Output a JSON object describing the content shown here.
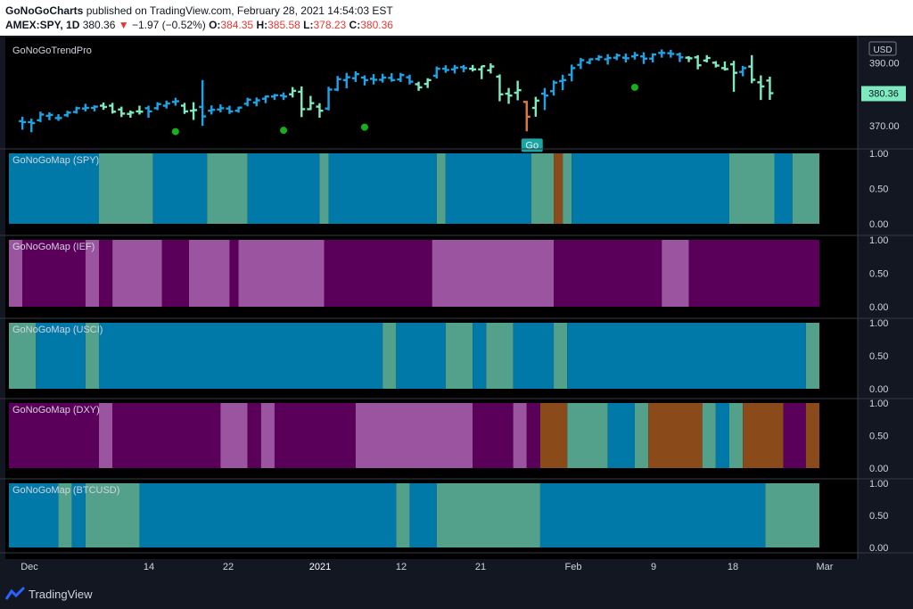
{
  "header": {
    "publisher": "GoNoGoCharts",
    "published_text": "published on TradingView.com, February 28, 2021 14:54:03 EST",
    "symbol": "AMEX:SPY, 1D",
    "last": "380.36",
    "change": "−1.97 (−0.52%)",
    "o_label": "O:",
    "o_value": "384.35",
    "h_label": "H:",
    "h_value": "385.58",
    "l_label": "L:",
    "l_value": "378.23",
    "c_label": "C:",
    "c_value": "380.36"
  },
  "footer": {
    "brand": "TradingView"
  },
  "colors": {
    "background": "#000000",
    "blue": "#0079A8",
    "aqua": "#53A18B",
    "purple": "#5A005A",
    "light_purple": "#9B55A0",
    "brown": "#8A4A1A",
    "bar_blue": "#1EA3E6",
    "bar_aqua": "#7EEAC0",
    "bar_orange": "#E07B39",
    "dot_green": "#15B01A",
    "last_price_bg": "#7EEAC0"
  },
  "chart_data": [
    {
      "type": "ohlc",
      "title": "GoNoGoTrendPro",
      "currency": "USD",
      "y_ticks": [
        "390.00",
        "370.00"
      ],
      "last_price": "380.36",
      "go_label": "Go",
      "x_ticks": [
        "Dec",
        "14",
        "22",
        "2021",
        "12",
        "21",
        "Feb",
        "9",
        "18",
        "Mar"
      ],
      "bars": [
        {
          "o": 371.5,
          "h": 372.9,
          "l": 368.8,
          "c": 371.2,
          "s": "blue"
        },
        {
          "o": 371.2,
          "h": 372.3,
          "l": 368.0,
          "c": 370.9,
          "s": "blue"
        },
        {
          "o": 371.8,
          "h": 374.5,
          "l": 371.2,
          "c": 373.6,
          "s": "blue"
        },
        {
          "o": 373.2,
          "h": 374.3,
          "l": 371.8,
          "c": 373.5,
          "s": "blue"
        },
        {
          "o": 372.5,
          "h": 373.7,
          "l": 371.6,
          "c": 372.5,
          "s": "blue"
        },
        {
          "o": 373.4,
          "h": 374.8,
          "l": 372.8,
          "c": 374.2,
          "s": "blue"
        },
        {
          "o": 374.4,
          "h": 376.1,
          "l": 373.9,
          "c": 375.6,
          "s": "blue"
        },
        {
          "o": 375.5,
          "h": 377.0,
          "l": 374.6,
          "c": 375.7,
          "s": "blue"
        },
        {
          "o": 375.7,
          "h": 376.5,
          "l": 374.6,
          "c": 376.1,
          "s": "blue"
        },
        {
          "o": 376.4,
          "h": 377.4,
          "l": 375.1,
          "c": 376.0,
          "s": "aqua"
        },
        {
          "o": 376.4,
          "h": 377.3,
          "l": 373.9,
          "c": 374.5,
          "s": "aqua"
        },
        {
          "o": 375.2,
          "h": 376.1,
          "l": 372.8,
          "c": 373.9,
          "s": "aqua"
        },
        {
          "o": 373.8,
          "h": 374.9,
          "l": 372.6,
          "c": 374.2,
          "s": "aqua"
        },
        {
          "o": 374.6,
          "h": 376.4,
          "l": 373.6,
          "c": 374.5,
          "s": "aqua"
        },
        {
          "o": 375.6,
          "h": 376.4,
          "l": 372.6,
          "c": 374.6,
          "s": "blue"
        },
        {
          "o": 375.6,
          "h": 377.5,
          "l": 375.0,
          "c": 376.9,
          "s": "blue"
        },
        {
          "o": 376.4,
          "h": 378.0,
          "l": 375.5,
          "c": 377.1,
          "s": "blue"
        },
        {
          "o": 377.6,
          "h": 378.9,
          "l": 376.4,
          "c": 377.8,
          "s": "blue"
        },
        {
          "o": 376.4,
          "h": 377.3,
          "l": 373.8,
          "c": 374.6,
          "s": "aqua"
        },
        {
          "o": 374.8,
          "h": 377.5,
          "l": 371.9,
          "c": 375.0,
          "s": "aqua"
        },
        {
          "o": 376.0,
          "h": 384.5,
          "l": 370.0,
          "c": 373.0,
          "s": "blue"
        },
        {
          "o": 374.8,
          "h": 376.5,
          "l": 373.6,
          "c": 375.1,
          "s": "blue"
        },
        {
          "o": 375.2,
          "h": 376.8,
          "l": 374.3,
          "c": 375.6,
          "s": "blue"
        },
        {
          "o": 375.5,
          "h": 376.4,
          "l": 373.8,
          "c": 374.6,
          "s": "blue"
        },
        {
          "o": 374.8,
          "h": 376.1,
          "l": 374.2,
          "c": 375.8,
          "s": "blue"
        },
        {
          "o": 377.0,
          "h": 378.9,
          "l": 376.2,
          "c": 378.3,
          "s": "blue"
        },
        {
          "o": 377.4,
          "h": 379.0,
          "l": 376.2,
          "c": 378.1,
          "s": "blue"
        },
        {
          "o": 378.6,
          "h": 379.6,
          "l": 377.2,
          "c": 379.3,
          "s": "blue"
        },
        {
          "o": 379.3,
          "h": 380.1,
          "l": 378.2,
          "c": 379.7,
          "s": "blue"
        },
        {
          "o": 379.6,
          "h": 380.6,
          "l": 378.2,
          "c": 379.3,
          "s": "blue"
        },
        {
          "o": 380.0,
          "h": 382.3,
          "l": 379.0,
          "c": 381.1,
          "s": "aqua"
        },
        {
          "o": 380.8,
          "h": 382.5,
          "l": 372.8,
          "c": 375.3,
          "s": "aqua"
        },
        {
          "o": 375.3,
          "h": 379.5,
          "l": 375.0,
          "c": 377.2,
          "s": "aqua"
        },
        {
          "o": 376.1,
          "h": 377.2,
          "l": 372.6,
          "c": 374.8,
          "s": "aqua"
        },
        {
          "o": 375.5,
          "h": 382.4,
          "l": 374.9,
          "c": 381.5,
          "s": "blue"
        },
        {
          "o": 381.5,
          "h": 385.8,
          "l": 381.0,
          "c": 384.8,
          "s": "blue"
        },
        {
          "o": 384.5,
          "h": 386.8,
          "l": 381.9,
          "c": 385.4,
          "s": "blue"
        },
        {
          "o": 385.1,
          "h": 387.3,
          "l": 383.9,
          "c": 386.4,
          "s": "blue"
        },
        {
          "o": 385.3,
          "h": 386.0,
          "l": 382.8,
          "c": 384.5,
          "s": "blue"
        },
        {
          "o": 384.9,
          "h": 386.4,
          "l": 383.1,
          "c": 384.6,
          "s": "blue"
        },
        {
          "o": 384.6,
          "h": 386.5,
          "l": 383.7,
          "c": 385.3,
          "s": "blue"
        },
        {
          "o": 385.2,
          "h": 386.7,
          "l": 384.0,
          "c": 384.5,
          "s": "blue"
        },
        {
          "o": 384.7,
          "h": 386.8,
          "l": 383.9,
          "c": 386.1,
          "s": "blue"
        },
        {
          "o": 385.4,
          "h": 386.2,
          "l": 383.1,
          "c": 384.0,
          "s": "blue"
        },
        {
          "o": 383.2,
          "h": 384.0,
          "l": 381.1,
          "c": 382.2,
          "s": "aqua"
        },
        {
          "o": 383.3,
          "h": 385.1,
          "l": 382.0,
          "c": 384.5,
          "s": "aqua"
        },
        {
          "o": 385.9,
          "h": 388.8,
          "l": 385.0,
          "c": 388.1,
          "s": "blue"
        },
        {
          "o": 388.1,
          "h": 389.2,
          "l": 386.8,
          "c": 387.7,
          "s": "blue"
        },
        {
          "o": 387.9,
          "h": 389.3,
          "l": 386.6,
          "c": 388.4,
          "s": "blue"
        },
        {
          "o": 388.6,
          "h": 389.3,
          "l": 387.0,
          "c": 388.3,
          "s": "blue"
        },
        {
          "o": 388.1,
          "h": 389.3,
          "l": 387.2,
          "c": 387.9,
          "s": "aqua"
        },
        {
          "o": 387.9,
          "h": 389.0,
          "l": 384.8,
          "c": 388.9,
          "s": "aqua"
        },
        {
          "o": 387.6,
          "h": 389.8,
          "l": 386.6,
          "c": 388.8,
          "s": "aqua"
        },
        {
          "o": 385.6,
          "h": 386.3,
          "l": 377.8,
          "c": 380.0,
          "s": "aqua"
        },
        {
          "o": 380.2,
          "h": 382.0,
          "l": 377.0,
          "c": 379.6,
          "s": "aqua"
        },
        {
          "o": 380.5,
          "h": 384.3,
          "l": 378.1,
          "c": 381.3,
          "s": "aqua"
        },
        {
          "o": 377.6,
          "h": 377.9,
          "l": 368.3,
          "c": 372.9,
          "s": "orange"
        },
        {
          "o": 375.7,
          "h": 379.2,
          "l": 372.9,
          "c": 378.0,
          "s": "aqua"
        },
        {
          "o": 380.2,
          "h": 382.0,
          "l": 375.0,
          "c": 379.6,
          "s": "blue"
        },
        {
          "o": 381.0,
          "h": 384.4,
          "l": 379.6,
          "c": 383.7,
          "s": "blue"
        },
        {
          "o": 384.2,
          "h": 386.2,
          "l": 381.3,
          "c": 384.5,
          "s": "blue"
        },
        {
          "o": 386.2,
          "h": 389.4,
          "l": 384.1,
          "c": 388.3,
          "s": "blue"
        },
        {
          "o": 389.3,
          "h": 391.5,
          "l": 388.0,
          "c": 390.8,
          "s": "blue"
        },
        {
          "o": 390.1,
          "h": 391.3,
          "l": 389.5,
          "c": 391.1,
          "s": "blue"
        },
        {
          "o": 391.2,
          "h": 392.4,
          "l": 390.6,
          "c": 391.8,
          "s": "blue"
        },
        {
          "o": 391.1,
          "h": 392.7,
          "l": 389.4,
          "c": 391.5,
          "s": "blue"
        },
        {
          "o": 391.6,
          "h": 392.9,
          "l": 390.8,
          "c": 392.3,
          "s": "blue"
        },
        {
          "o": 391.6,
          "h": 392.9,
          "l": 390.1,
          "c": 391.4,
          "s": "blue"
        },
        {
          "o": 392.0,
          "h": 393.4,
          "l": 391.0,
          "c": 392.4,
          "s": "blue"
        },
        {
          "o": 392.0,
          "h": 393.3,
          "l": 389.6,
          "c": 391.3,
          "s": "blue"
        },
        {
          "o": 391.3,
          "h": 393.0,
          "l": 390.1,
          "c": 392.6,
          "s": "blue"
        },
        {
          "o": 393.1,
          "h": 394.2,
          "l": 391.6,
          "c": 393.1,
          "s": "blue"
        },
        {
          "o": 393.0,
          "h": 394.1,
          "l": 391.6,
          "c": 392.8,
          "s": "blue"
        },
        {
          "o": 392.6,
          "h": 393.2,
          "l": 390.2,
          "c": 391.7,
          "s": "blue"
        },
        {
          "o": 391.6,
          "h": 392.1,
          "l": 390.2,
          "c": 391.4,
          "s": "aqua"
        },
        {
          "o": 391.7,
          "h": 392.4,
          "l": 387.9,
          "c": 389.2,
          "s": "aqua"
        },
        {
          "o": 390.7,
          "h": 392.4,
          "l": 390.1,
          "c": 391.5,
          "s": "aqua"
        },
        {
          "o": 390.0,
          "h": 390.5,
          "l": 388.5,
          "c": 389.1,
          "s": "aqua"
        },
        {
          "o": 388.3,
          "h": 390.4,
          "l": 387.5,
          "c": 388.0,
          "s": "aqua"
        },
        {
          "o": 389.5,
          "h": 390.6,
          "l": 380.8,
          "c": 386.8,
          "s": "aqua"
        },
        {
          "o": 387.1,
          "h": 389.0,
          "l": 385.7,
          "c": 388.3,
          "s": "blue"
        },
        {
          "o": 388.8,
          "h": 392.4,
          "l": 383.5,
          "c": 384.6,
          "s": "aqua"
        },
        {
          "o": 383.8,
          "h": 386.0,
          "l": 378.2,
          "c": 382.5,
          "s": "aqua"
        },
        {
          "o": 384.35,
          "h": 385.58,
          "l": 378.23,
          "c": 380.36,
          "s": "aqua"
        }
      ],
      "go_dots_low": [
        368.2,
        368.6,
        369.6,
        382.2
      ]
    },
    {
      "type": "heatmap",
      "title": "GoNoGoMap (SPY)",
      "y_ticks": [
        "1.00",
        "0.50",
        "0.00"
      ],
      "segments": [
        {
          "from": 0,
          "to": 20,
          "c": "blue"
        },
        {
          "from": 20,
          "to": 32,
          "c": "aqua"
        },
        {
          "from": 32,
          "to": 44,
          "c": "blue"
        },
        {
          "from": 44,
          "to": 53,
          "c": "aqua"
        },
        {
          "from": 53,
          "to": 69,
          "c": "blue"
        },
        {
          "from": 69,
          "to": 71,
          "c": "aqua"
        },
        {
          "from": 71,
          "to": 95,
          "c": "blue"
        },
        {
          "from": 95,
          "to": 97,
          "c": "aqua"
        },
        {
          "from": 97,
          "to": 116,
          "c": "blue"
        },
        {
          "from": 116,
          "to": 121,
          "c": "aqua"
        },
        {
          "from": 121,
          "to": 123,
          "c": "brown"
        },
        {
          "from": 123,
          "to": 125,
          "c": "aqua"
        },
        {
          "from": 125,
          "to": 160,
          "c": "blue"
        },
        {
          "from": 160,
          "to": 170,
          "c": "aqua"
        },
        {
          "from": 170,
          "to": 174,
          "c": "blue"
        },
        {
          "from": 174,
          "to": 180,
          "c": "aqua"
        }
      ]
    },
    {
      "type": "heatmap",
      "title": "GoNoGoMap (IEF)",
      "y_ticks": [
        "1.00",
        "0.50",
        "0.00"
      ],
      "segments": [
        {
          "from": 0,
          "to": 3,
          "c": "light_purple"
        },
        {
          "from": 3,
          "to": 17,
          "c": "purple"
        },
        {
          "from": 17,
          "to": 20,
          "c": "light_purple"
        },
        {
          "from": 20,
          "to": 23,
          "c": "purple"
        },
        {
          "from": 23,
          "to": 34,
          "c": "light_purple"
        },
        {
          "from": 34,
          "to": 40,
          "c": "purple"
        },
        {
          "from": 40,
          "to": 49,
          "c": "light_purple"
        },
        {
          "from": 49,
          "to": 51,
          "c": "purple"
        },
        {
          "from": 51,
          "to": 70,
          "c": "light_purple"
        },
        {
          "from": 70,
          "to": 94,
          "c": "purple"
        },
        {
          "from": 94,
          "to": 121,
          "c": "light_purple"
        },
        {
          "from": 121,
          "to": 145,
          "c": "purple"
        },
        {
          "from": 145,
          "to": 151,
          "c": "light_purple"
        },
        {
          "from": 151,
          "to": 180,
          "c": "purple"
        }
      ]
    },
    {
      "type": "heatmap",
      "title": "GoNoGoMap (USCI)",
      "y_ticks": [
        "1.00",
        "0.50",
        "0.00"
      ],
      "segments": [
        {
          "from": 0,
          "to": 6,
          "c": "aqua"
        },
        {
          "from": 6,
          "to": 17,
          "c": "blue"
        },
        {
          "from": 17,
          "to": 20,
          "c": "aqua"
        },
        {
          "from": 20,
          "to": 83,
          "c": "blue"
        },
        {
          "from": 83,
          "to": 86,
          "c": "aqua"
        },
        {
          "from": 86,
          "to": 97,
          "c": "blue"
        },
        {
          "from": 97,
          "to": 103,
          "c": "aqua"
        },
        {
          "from": 103,
          "to": 106,
          "c": "blue"
        },
        {
          "from": 106,
          "to": 112,
          "c": "aqua"
        },
        {
          "from": 112,
          "to": 121,
          "c": "blue"
        },
        {
          "from": 121,
          "to": 124,
          "c": "aqua"
        },
        {
          "from": 124,
          "to": 177,
          "c": "blue"
        },
        {
          "from": 177,
          "to": 180,
          "c": "aqua"
        }
      ]
    },
    {
      "type": "heatmap",
      "title": "GoNoGoMap (DXY)",
      "y_ticks": [
        "1.00",
        "0.50",
        "0.00"
      ],
      "segments": [
        {
          "from": 0,
          "to": 20,
          "c": "purple"
        },
        {
          "from": 20,
          "to": 23,
          "c": "light_purple"
        },
        {
          "from": 23,
          "to": 47,
          "c": "purple"
        },
        {
          "from": 47,
          "to": 53,
          "c": "light_purple"
        },
        {
          "from": 53,
          "to": 56,
          "c": "purple"
        },
        {
          "from": 56,
          "to": 59,
          "c": "light_purple"
        },
        {
          "from": 59,
          "to": 77,
          "c": "purple"
        },
        {
          "from": 77,
          "to": 103,
          "c": "light_purple"
        },
        {
          "from": 103,
          "to": 112,
          "c": "purple"
        },
        {
          "from": 112,
          "to": 115,
          "c": "light_purple"
        },
        {
          "from": 115,
          "to": 118,
          "c": "purple"
        },
        {
          "from": 118,
          "to": 124,
          "c": "brown"
        },
        {
          "from": 124,
          "to": 133,
          "c": "aqua"
        },
        {
          "from": 133,
          "to": 139,
          "c": "blue"
        },
        {
          "from": 139,
          "to": 142,
          "c": "aqua"
        },
        {
          "from": 142,
          "to": 154,
          "c": "brown"
        },
        {
          "from": 154,
          "to": 157,
          "c": "aqua"
        },
        {
          "from": 157,
          "to": 160,
          "c": "blue"
        },
        {
          "from": 160,
          "to": 163,
          "c": "aqua"
        },
        {
          "from": 163,
          "to": 172,
          "c": "brown"
        },
        {
          "from": 172,
          "to": 177,
          "c": "purple"
        },
        {
          "from": 177,
          "to": 180,
          "c": "brown"
        }
      ]
    },
    {
      "type": "heatmap",
      "title": "GoNoGoMap (BTCUSD)",
      "y_ticks": [
        "1.00",
        "0.50",
        "0.00"
      ],
      "segments": [
        {
          "from": 0,
          "to": 11,
          "c": "blue"
        },
        {
          "from": 11,
          "to": 14,
          "c": "aqua"
        },
        {
          "from": 14,
          "to": 17,
          "c": "blue"
        },
        {
          "from": 17,
          "to": 29,
          "c": "aqua"
        },
        {
          "from": 29,
          "to": 86,
          "c": "blue"
        },
        {
          "from": 86,
          "to": 89,
          "c": "aqua"
        },
        {
          "from": 89,
          "to": 95,
          "c": "blue"
        },
        {
          "from": 95,
          "to": 118,
          "c": "aqua"
        },
        {
          "from": 118,
          "to": 168,
          "c": "blue"
        },
        {
          "from": 168,
          "to": 180,
          "c": "aqua"
        }
      ]
    }
  ]
}
